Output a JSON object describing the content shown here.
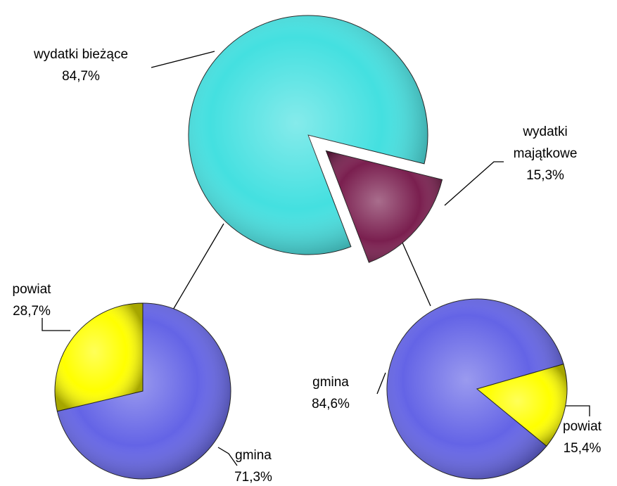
{
  "chart_data": [
    {
      "type": "pie",
      "categories": [
        "wydatki bieżące",
        "wydatki majątkowe"
      ],
      "values": [
        84.7,
        15.3
      ],
      "value_labels": [
        "84,7%",
        "15,3%"
      ],
      "colors": [
        "#44e0e0",
        "#7a1f4f"
      ]
    },
    {
      "type": "pie",
      "categories": [
        "gmina",
        "powiat"
      ],
      "values": [
        71.3,
        28.7
      ],
      "value_labels": [
        "71,3%",
        "28,7%"
      ],
      "colors": [
        "#6464e6",
        "#ffff00"
      ]
    },
    {
      "type": "pie",
      "categories": [
        "gmina",
        "powiat"
      ],
      "values": [
        84.6,
        15.4
      ],
      "value_labels": [
        "84,6%",
        "15,4%"
      ],
      "colors": [
        "#6464e6",
        "#ffff00"
      ]
    }
  ]
}
